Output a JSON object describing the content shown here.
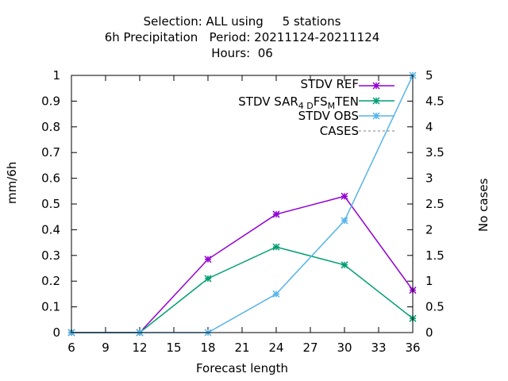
{
  "title": {
    "line1": "Selection: ALL using     5 stations",
    "line2": "6h Precipitation   Period: 20211124-20211124",
    "line3": "Hours:  06"
  },
  "chart_data": {
    "type": "line",
    "xlabel": "Forecast length",
    "ylabel": "mm/6h",
    "y2label": "No cases",
    "x": [
      6,
      12,
      18,
      24,
      30,
      36
    ],
    "xlim": [
      6,
      36
    ],
    "xticks": [
      6,
      9,
      12,
      15,
      18,
      21,
      24,
      27,
      30,
      33,
      36
    ],
    "ylim": [
      0,
      1
    ],
    "yticks": [
      0,
      0.1,
      0.2,
      0.3,
      0.4,
      0.5,
      0.6,
      0.7,
      0.8,
      0.9,
      1
    ],
    "ytick_labels": [
      "0",
      "0.1",
      "0.2",
      "0.3",
      "0.4",
      "0.5",
      "0.6",
      "0.7",
      "0.8",
      "0.9",
      "1"
    ],
    "y2lim": [
      0,
      5
    ],
    "y2ticks": [
      0,
      0.5,
      1,
      1.5,
      2,
      2.5,
      3,
      3.5,
      4,
      4.5,
      5
    ],
    "y2tick_labels": [
      "0",
      "0.5",
      "1",
      "1.5",
      "2",
      "2.5",
      "3",
      "3.5",
      "4",
      "4.5",
      "5"
    ],
    "grid": false,
    "legend_position": "top-right",
    "series": [
      {
        "name": "STDV REF",
        "color": "#9400d3",
        "axis": "y1",
        "marker": "x-star",
        "values": [
          0,
          0,
          0.285,
          0.46,
          0.53,
          0.165
        ]
      },
      {
        "name": "STDV SAR_4DFS_MTEN",
        "label_main1": "STDV SAR",
        "label_sub1": "4 D",
        "label_main2": "FS",
        "label_sub2": "M",
        "label_main3": "TEN",
        "color": "#009e73",
        "axis": "y1",
        "marker": "x-star",
        "values": [
          0,
          0,
          0.21,
          0.333,
          0.263,
          0.055
        ]
      },
      {
        "name": "STDV OBS",
        "color": "#56b4e9",
        "axis": "y1",
        "marker": "x-star",
        "values": [
          0,
          0,
          0,
          0.15,
          0.435,
          1.0
        ]
      },
      {
        "name": "CASES",
        "color": "#808080",
        "axis": "y2",
        "dashed": true,
        "marker": "none",
        "values": [
          5,
          5,
          5,
          5,
          5,
          5
        ]
      }
    ]
  }
}
